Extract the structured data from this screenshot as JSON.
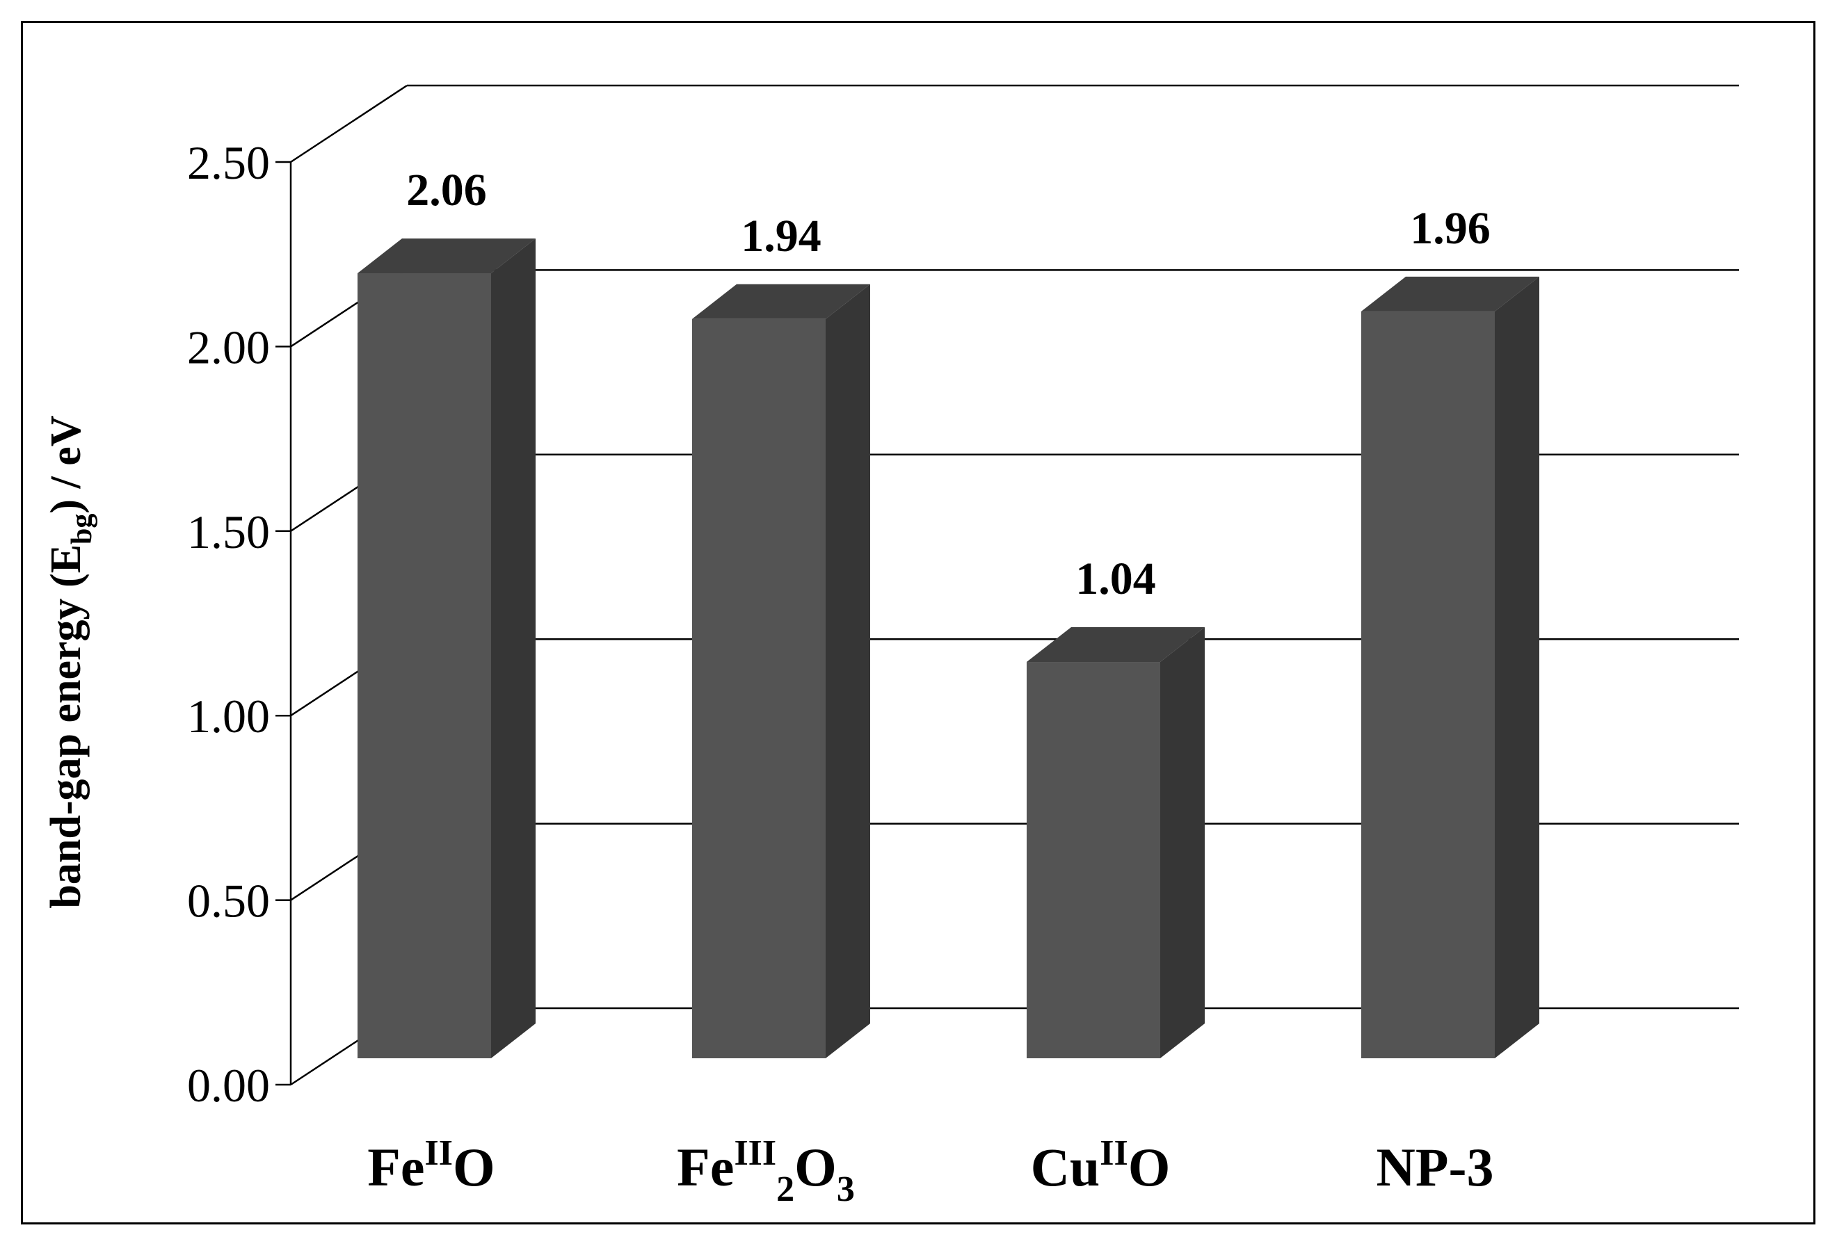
{
  "chart_data": {
    "type": "bar",
    "style": "3d-columns",
    "categories": [
      {
        "base": "Fe",
        "sup": "II",
        "tail": "O",
        "sub": "",
        "tail2": ""
      },
      {
        "base": "Fe",
        "sup": "III",
        "tail": "",
        "sub": "2",
        "tail2": "O",
        "sub2": "3"
      },
      {
        "base": "Cu",
        "sup": "II",
        "tail": "O",
        "sub": "",
        "tail2": ""
      },
      {
        "base": "NP-3",
        "sup": "",
        "tail": "",
        "sub": "",
        "tail2": ""
      }
    ],
    "values": [
      2.06,
      1.94,
      1.04,
      1.96
    ],
    "data_labels": [
      "2.06",
      "1.94",
      "1.04",
      "1.96"
    ],
    "yticks": [
      "0.00",
      "0.50",
      "1.00",
      "1.50",
      "2.00",
      "2.50"
    ],
    "ylim": [
      0,
      2.5
    ],
    "ylabel": {
      "pre": "band-gap energy (E",
      "sub": "bg",
      "post": ") / eV"
    },
    "grid": true,
    "legend": "none",
    "colors": {
      "bar_front": "#545454",
      "bar_side": "#363636",
      "bar_top": "#404040",
      "grid": "#000000"
    }
  }
}
